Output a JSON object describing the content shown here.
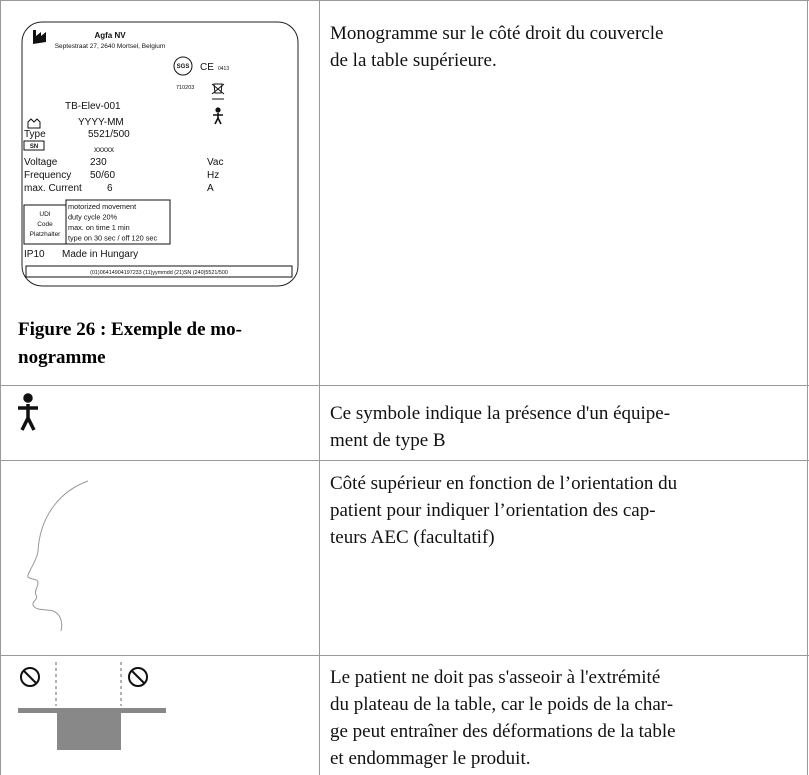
{
  "figure_label": {
    "company": "Agfa NV",
    "address": "Septestraat 27, 2640 Mortsel, Belgium",
    "sgs": "SGS",
    "ce": "CE",
    "notified_body": "0413",
    "code": "710203",
    "model": "TB-Elev-001",
    "date": "YYYY-MM",
    "type_label": "Type",
    "type_value": "5521/500",
    "sn_label": "SN",
    "sn_value": "xxxxx",
    "voltage_label": "Voltage",
    "voltage_value": "230",
    "voltage_unit": "Vac",
    "frequency_label": "Frequency",
    "frequency_value": "50/60",
    "frequency_unit": "Hz",
    "current_label": "max. Current",
    "current_value": "6",
    "current_unit": "A",
    "udi_lines": [
      "UDI",
      "Code",
      "Platzhalter"
    ],
    "duty_lines": [
      "motorized movement",
      "duty cycle 20%",
      "max. on time 1 min",
      "type on 30 sec / off 120 sec"
    ],
    "ip": "IP10",
    "origin": "Made in Hungary",
    "barcode": "(01)06414904197233 (11)yymmdd (21)SN (240)5521/500"
  },
  "caption": {
    "lines": [
      "Figure 26 : Exemple de mo-",
      "nogramme"
    ]
  },
  "rows": [
    {
      "text": [
        "Monogramme sur le côté droit du couvercle",
        "de la table supérieure."
      ]
    },
    {
      "text": [
        "Ce symbole indique la présence d'un équipe-",
        "ment de type B"
      ]
    },
    {
      "text": [
        "Côté supérieur en fonction de l’orientation du",
        "patient pour indiquer l’orientation des cap-",
        "teurs AEC (facultatif)"
      ]
    },
    {
      "text": [
        "Le patient ne doit pas s'asseoir à l'extrémité",
        "du plateau de la table, car le poids de la char-",
        "ge peut entraîner des déformations de la table",
        "et endommager le produit."
      ]
    }
  ]
}
